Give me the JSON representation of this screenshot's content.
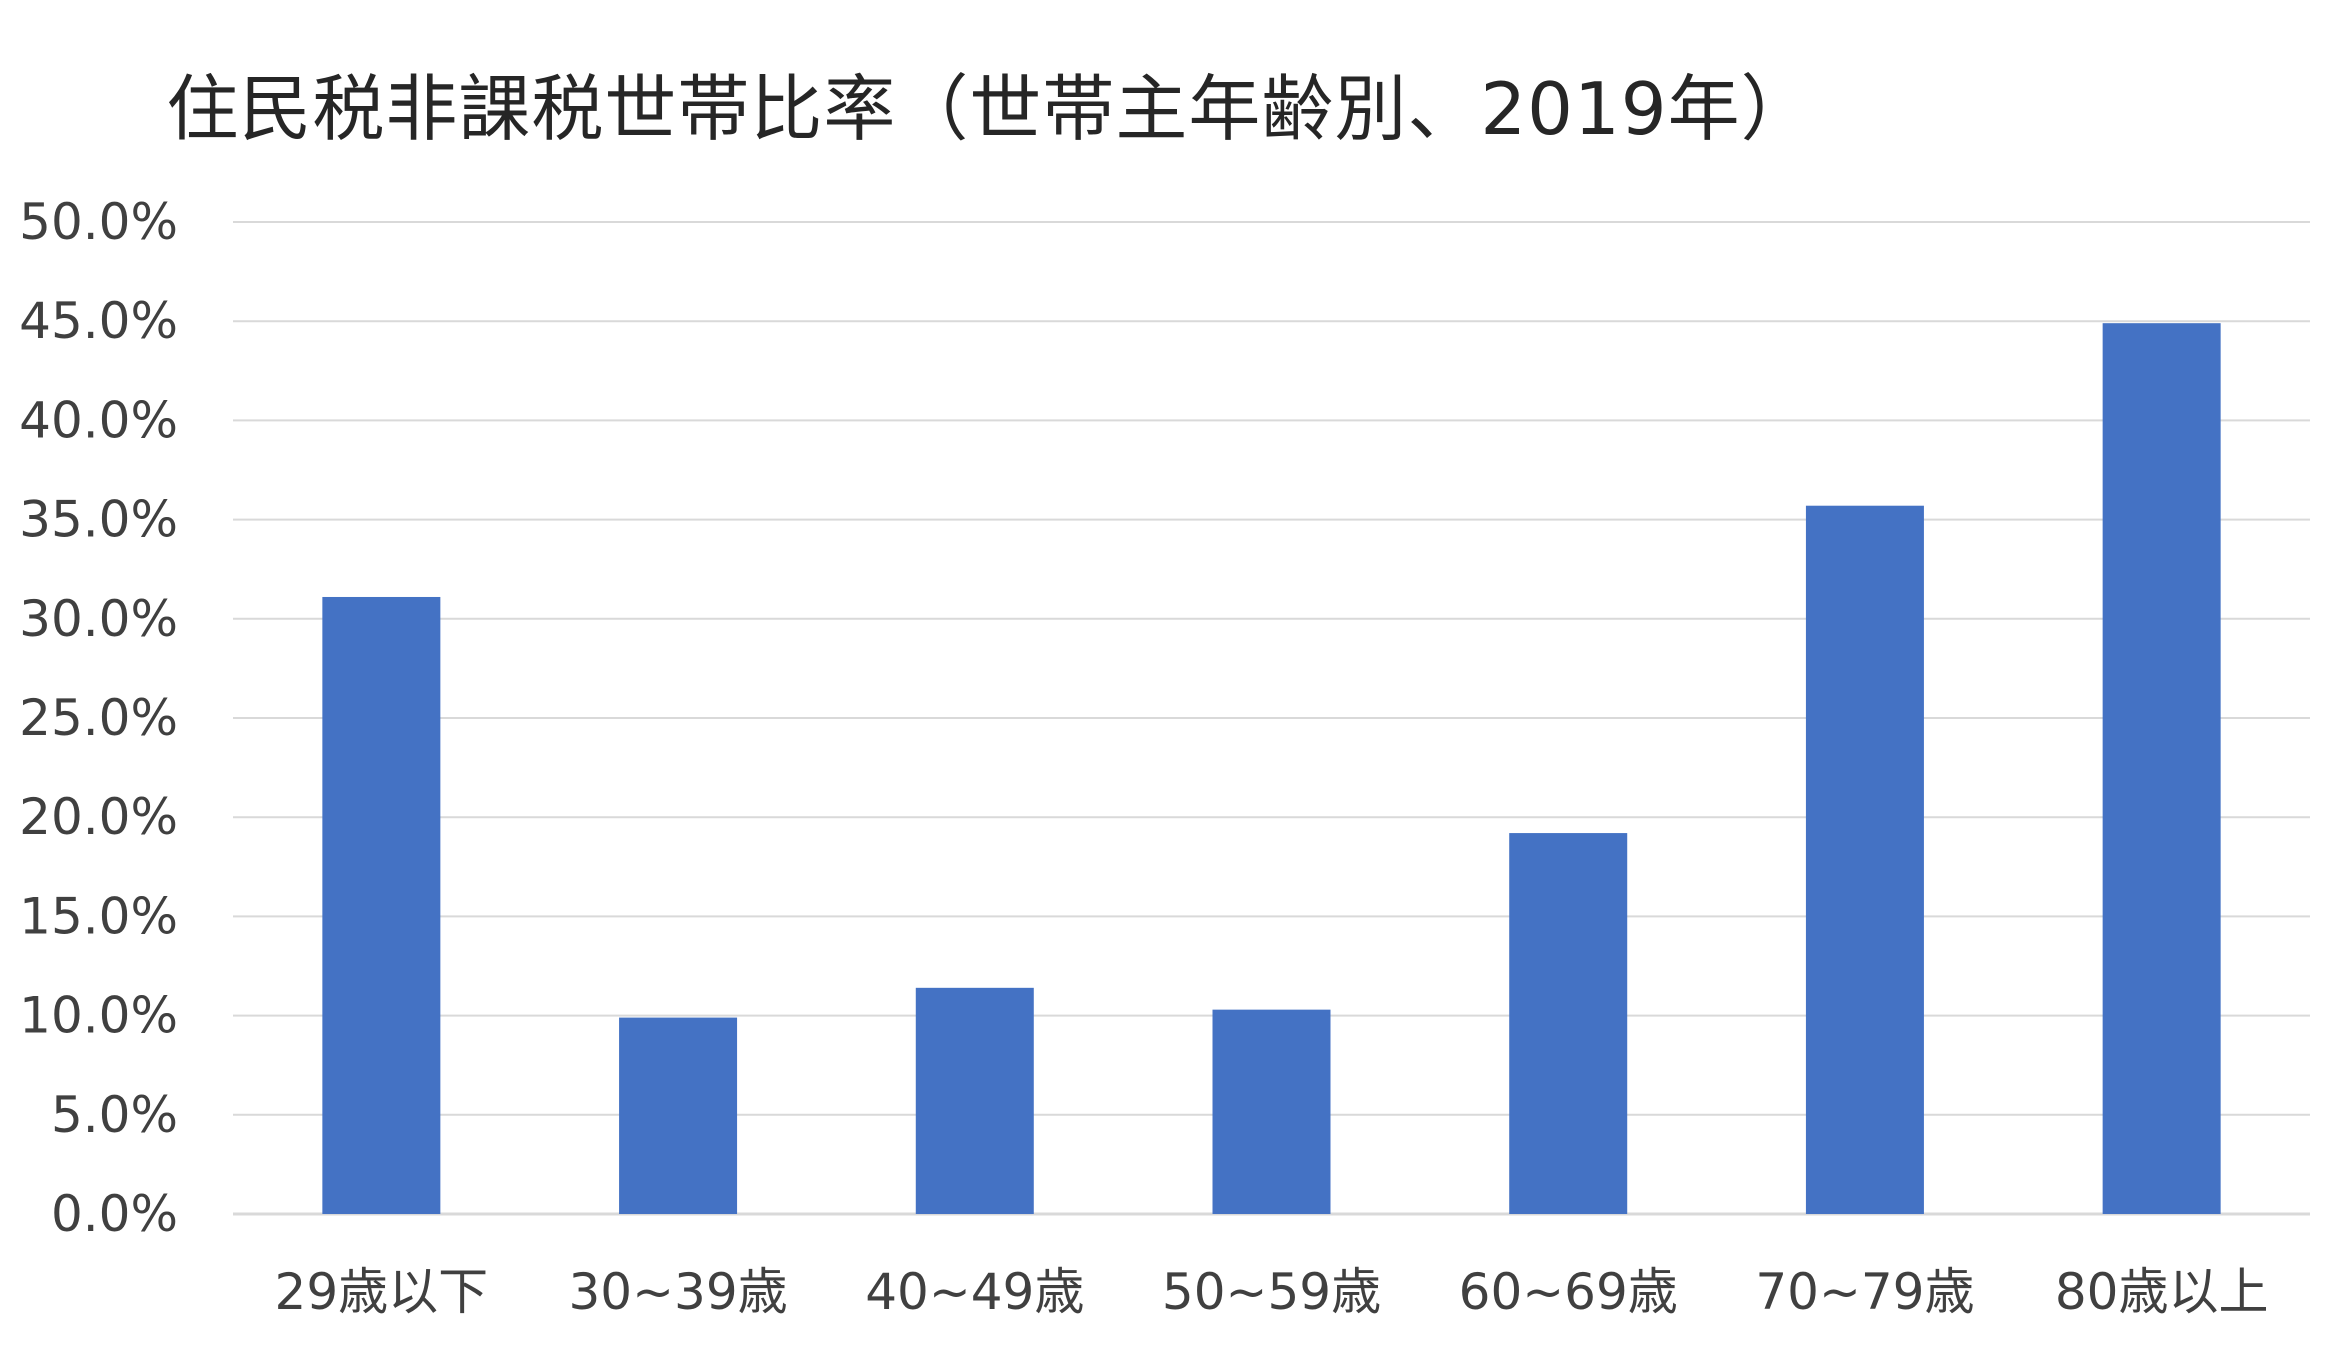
{
  "chart_data": {
    "type": "bar",
    "title": "住民税非課税世帯比率（世帯主年齢別、2019年）",
    "xlabel": "",
    "ylabel": "",
    "categories": [
      "29歳以下",
      "30~39歳",
      "40~49歳",
      "50~59歳",
      "60~69歳",
      "70~79歳",
      "80歳以上"
    ],
    "values": [
      31.1,
      9.9,
      11.4,
      10.3,
      19.2,
      35.7,
      44.9
    ],
    "ylim": [
      0,
      50
    ],
    "y_ticks": [
      "0.0%",
      "5.0%",
      "10.0%",
      "15.0%",
      "20.0%",
      "25.0%",
      "30.0%",
      "35.0%",
      "40.0%",
      "45.0%",
      "50.0%"
    ],
    "y_unit": "%",
    "grid": true,
    "legend": "none",
    "colors": {
      "bar": "#4472C4",
      "grid": "#D9D9D9",
      "text": "#404040"
    }
  }
}
